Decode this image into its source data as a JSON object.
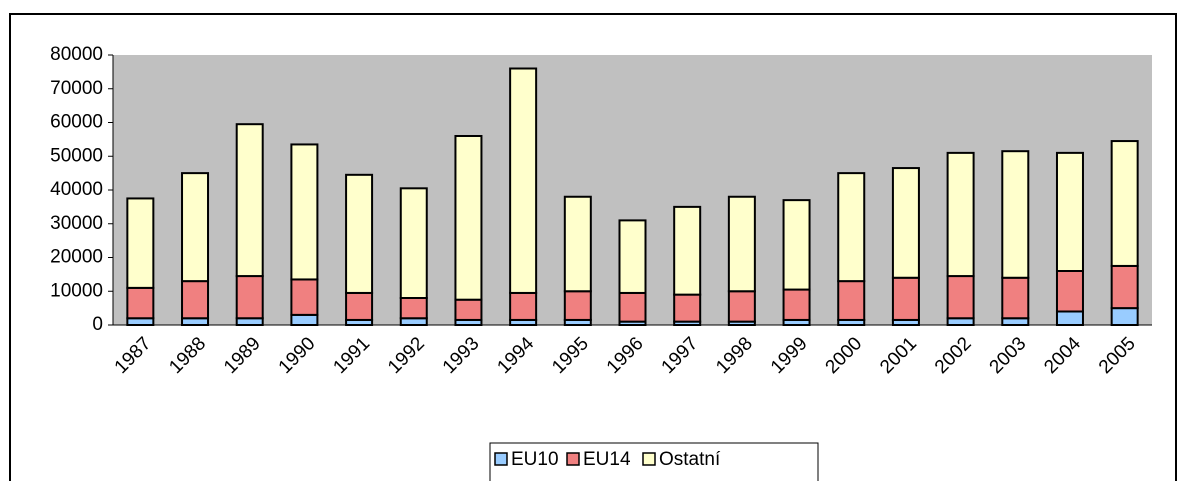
{
  "chart_data": {
    "type": "stacked_bar",
    "categories": [
      "1987",
      "1988",
      "1989",
      "1990",
      "1991",
      "1992",
      "1993",
      "1994",
      "1995",
      "1996",
      "1997",
      "1998",
      "1999",
      "2000",
      "2001",
      "2002",
      "2003",
      "2004",
      "2005"
    ],
    "series": [
      {
        "name": "EU10",
        "color": "#99ccff",
        "values": [
          2000,
          2000,
          2000,
          3000,
          1500,
          2000,
          1500,
          1500,
          1500,
          1000,
          1000,
          1000,
          1500,
          1500,
          1500,
          2000,
          2000,
          4000,
          5000
        ]
      },
      {
        "name": "EU14",
        "color": "#f08080",
        "values": [
          9000,
          11000,
          12500,
          10500,
          8000,
          6000,
          6000,
          8000,
          8500,
          8500,
          8000,
          9000,
          9000,
          11500,
          12500,
          12500,
          12000,
          12000,
          12500
        ]
      },
      {
        "name": "Ostatní",
        "color": "#ffffcc",
        "values": [
          26500,
          32000,
          45000,
          40000,
          35000,
          32500,
          48500,
          66500,
          28000,
          21500,
          26000,
          28000,
          26500,
          32000,
          32500,
          36500,
          37500,
          35000,
          37000
        ]
      }
    ],
    "ylim": [
      0,
      80000
    ],
    "yticks": [
      0,
      10000,
      20000,
      30000,
      40000,
      50000,
      60000,
      70000,
      80000
    ],
    "grid": false,
    "legend": "bottom"
  }
}
